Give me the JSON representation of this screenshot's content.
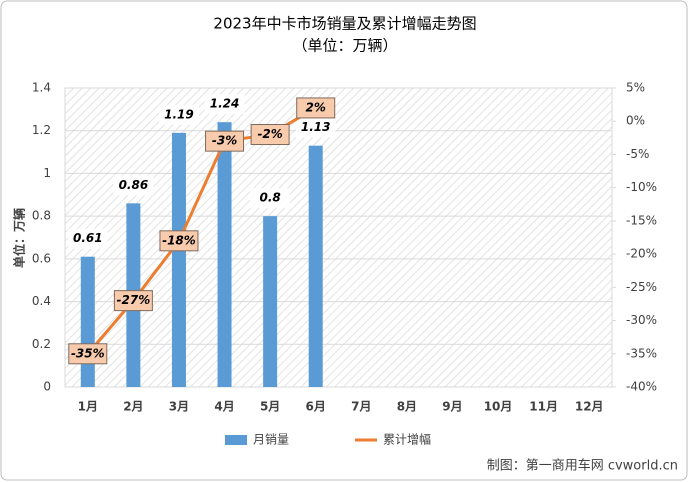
{
  "chart_data": {
    "type": "combo",
    "title": "2023年中卡市场销量及累计增幅走势图",
    "subtitle": "（单位：万辆）",
    "y_label": "单位：万辆",
    "source": "制图：第一商用车网 cvworld.cn",
    "categories": [
      "1月",
      "2月",
      "3月",
      "4月",
      "5月",
      "6月",
      "7月",
      "8月",
      "9月",
      "10月",
      "11月",
      "12月"
    ],
    "series": [
      {
        "name": "月销量",
        "type": "bar",
        "color": "#5b9bd5",
        "values": [
          0.61,
          0.86,
          1.19,
          1.24,
          0.8,
          1.13,
          null,
          null,
          null,
          null,
          null,
          null
        ]
      },
      {
        "name": "累计增幅",
        "type": "line",
        "axis": "y2",
        "color": "#ed7d31",
        "values": [
          -35,
          -27,
          -18,
          -3,
          -2,
          2,
          null,
          null,
          null,
          null,
          null,
          null
        ],
        "value_labels": [
          "-35%",
          "-27%",
          "-18%",
          "-3%",
          "-2%",
          "2%",
          null,
          null,
          null,
          null,
          null,
          null
        ]
      }
    ],
    "ylim": [
      0,
      1.4
    ],
    "yticks": [
      0,
      0.2,
      0.4,
      0.6,
      0.8,
      1,
      1.2,
      1.4
    ],
    "y2lim": [
      -40,
      5
    ],
    "y2ticks": [
      {
        "value": 5,
        "label": "5%"
      },
      {
        "value": 0,
        "label": "0%"
      },
      {
        "value": -5,
        "label": "-5%"
      },
      {
        "value": -10,
        "label": "-10%"
      },
      {
        "value": -15,
        "label": "-15%"
      },
      {
        "value": -20,
        "label": "-20%"
      },
      {
        "value": -25,
        "label": "-25%"
      },
      {
        "value": -30,
        "label": "-30%"
      },
      {
        "value": -35,
        "label": "-35%"
      },
      {
        "value": -40,
        "label": "-40%"
      }
    ],
    "grid": true,
    "legend": "bottom"
  }
}
